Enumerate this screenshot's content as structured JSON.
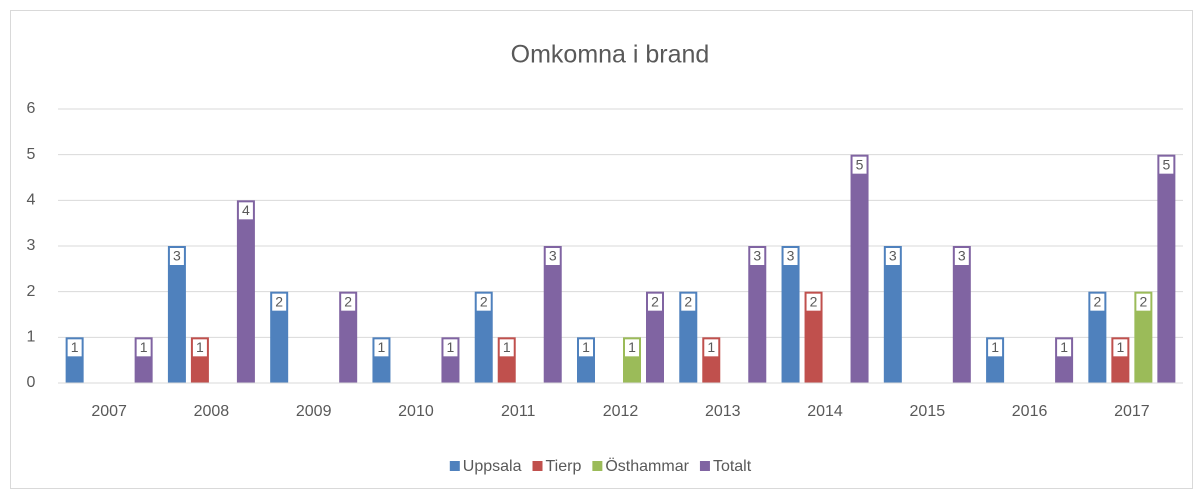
{
  "chart_data": {
    "type": "bar",
    "title": "Omkomna i brand",
    "categories": [
      "2007",
      "2008",
      "2009",
      "2010",
      "2011",
      "2012",
      "2013",
      "2014",
      "2015",
      "2016",
      "2017"
    ],
    "series": [
      {
        "name": "Uppsala",
        "color": "#4f81bd",
        "values": [
          1,
          3,
          2,
          1,
          2,
          1,
          2,
          3,
          3,
          1,
          2
        ]
      },
      {
        "name": "Tierp",
        "color": "#c0504d",
        "values": [
          null,
          1,
          null,
          null,
          1,
          null,
          1,
          2,
          null,
          null,
          1
        ]
      },
      {
        "name": "Östhammar",
        "color": "#9bbb59",
        "values": [
          null,
          null,
          null,
          null,
          null,
          1,
          null,
          null,
          null,
          null,
          2
        ]
      },
      {
        "name": "Totalt",
        "color": "#8064a2",
        "values": [
          1,
          4,
          2,
          1,
          3,
          2,
          3,
          5,
          3,
          1,
          5
        ]
      }
    ],
    "ylim": [
      0,
      6
    ],
    "yticks": [
      0,
      1,
      2,
      3,
      4,
      5,
      6
    ],
    "grid": true,
    "legend": "bottom"
  }
}
